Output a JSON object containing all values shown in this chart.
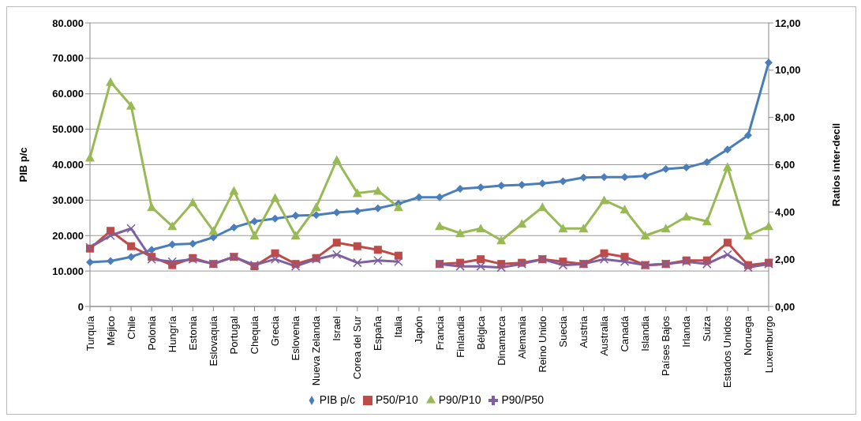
{
  "chart_data": {
    "type": "line",
    "categories": [
      "Turquía",
      "Méjico",
      "Chile",
      "Polonia",
      "Hungría",
      "Estonia",
      "Eslovaquia",
      "Portugal",
      "Chequia",
      "Grecia",
      "Eslovenia",
      "Nueva Zelanda",
      "Israel",
      "Corea del Sur",
      "España",
      "Italia",
      "Japón",
      "Francia",
      "Finlandia",
      "Bélgica",
      "Dinamarca",
      "Alemania",
      "Reino Unido",
      "Suecia",
      "Austria",
      "Australia",
      "Canadá",
      "Islandia",
      "Países Bajos",
      "Irlanda",
      "Suiza",
      "Estados Unidos",
      "Noruega",
      "Luxemburgo"
    ],
    "series": [
      {
        "name": "PIB p/c",
        "color": "#4a7ebb",
        "marker": "diamond",
        "values": [
          12500,
          12800,
          14000,
          16000,
          17500,
          17700,
          19500,
          22300,
          24000,
          24800,
          25600,
          25800,
          26500,
          26900,
          27700,
          29000,
          30800,
          30800,
          33200,
          33600,
          34100,
          34300,
          34700,
          35300,
          36400,
          36500,
          36500,
          36800,
          38800,
          39200,
          40700,
          44300,
          48300,
          68800
        ]
      },
      {
        "name": "P50/P10",
        "color": "#be4b48",
        "marker": "square",
        "axis": "y2",
        "values": [
          2.45,
          3.2,
          2.55,
          2.1,
          1.75,
          2.05,
          1.8,
          2.1,
          1.7,
          2.25,
          1.8,
          2.05,
          2.7,
          2.55,
          2.4,
          2.15,
          null,
          1.8,
          1.85,
          2.0,
          1.8,
          1.85,
          2.0,
          1.9,
          1.8,
          2.25,
          2.1,
          1.75,
          1.8,
          1.95,
          1.95,
          2.7,
          1.75,
          1.85
        ]
      },
      {
        "name": "P90/P10",
        "color": "#98b954",
        "marker": "triangle",
        "axis": "y2",
        "values": [
          6.3,
          9.5,
          8.5,
          4.2,
          3.4,
          4.4,
          3.2,
          4.9,
          3.0,
          4.6,
          3.0,
          4.2,
          6.2,
          4.8,
          4.9,
          4.2,
          null,
          3.4,
          3.1,
          3.3,
          2.8,
          3.5,
          4.2,
          3.3,
          3.3,
          4.5,
          4.1,
          3.0,
          3.3,
          3.8,
          3.6,
          5.9,
          3.0,
          3.4
        ]
      },
      {
        "name": "P90/P50",
        "color": "#7d60a0",
        "marker": "cross",
        "axis": "y2",
        "values": [
          2.5,
          3.0,
          3.3,
          2.0,
          1.9,
          2.0,
          1.8,
          2.1,
          1.75,
          2.0,
          1.7,
          2.0,
          2.2,
          1.85,
          1.95,
          1.9,
          null,
          1.8,
          1.7,
          1.7,
          1.65,
          1.8,
          2.0,
          1.75,
          1.8,
          2.0,
          1.9,
          1.75,
          1.8,
          1.9,
          1.8,
          2.2,
          1.65,
          1.8
        ]
      }
    ],
    "ylabel": "PIB p/c",
    "y2label": "Ratios inter-decil",
    "ylim": [
      0,
      80000
    ],
    "yticks": [
      0,
      {
        "value": 10000,
        "label": "10.000"
      },
      {
        "value": 20000,
        "label": "20.000"
      },
      {
        "value": 30000,
        "label": "30.000"
      },
      {
        "value": 40000,
        "label": "40.000"
      },
      {
        "value": 50000,
        "label": "50.000"
      },
      {
        "value": 60000,
        "label": "60.000"
      },
      {
        "value": 70000,
        "label": "70.000"
      },
      {
        "value": 80000,
        "label": "80.000"
      }
    ],
    "y2lim": [
      0,
      12
    ],
    "y2ticks": [
      {
        "value": 0,
        "label": "0,00"
      },
      {
        "value": 2,
        "label": "2,00"
      },
      {
        "value": 4,
        "label": "4,00"
      },
      {
        "value": 6,
        "label": "6,00"
      },
      {
        "value": 8,
        "label": "8,00"
      },
      {
        "value": 10,
        "label": "10,00"
      },
      {
        "value": 12,
        "label": "12,00"
      }
    ],
    "grid": "y",
    "legend": "bottom"
  }
}
